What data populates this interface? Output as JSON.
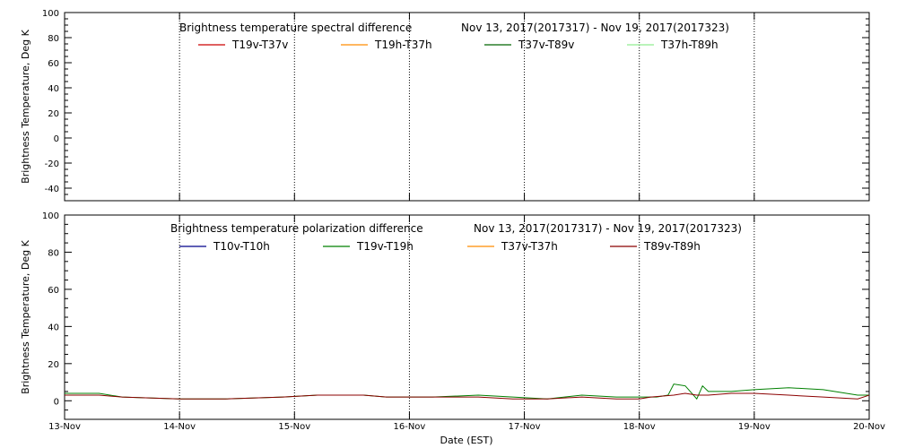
{
  "colors": {
    "background": "#ffffff",
    "axis": "#000000",
    "grid": "#000000"
  },
  "xaxis": {
    "label": "Date (EST)",
    "ticks": [
      "13-Nov",
      "14-Nov",
      "15-Nov",
      "16-Nov",
      "17-Nov",
      "18-Nov",
      "19-Nov",
      "20-Nov"
    ]
  },
  "chart_data": [
    {
      "type": "line",
      "title": "Brightness temperature spectral difference",
      "date_range": "Nov 13, 2017(2017317) - Nov 19, 2017(2017323)",
      "ylabel": "Brightness Temperature, Deg K",
      "ylim": [
        -50,
        100
      ],
      "yticks": [
        -40,
        -20,
        0,
        20,
        40,
        60,
        80,
        100
      ],
      "xlim": [
        "13-Nov",
        "20-Nov"
      ],
      "grid": "vertical dotted at day boundaries",
      "legend": "top",
      "series": [
        {
          "name": "T19v-T37v",
          "color": "#cc0000",
          "x": [],
          "values": []
        },
        {
          "name": "T19h-T37h",
          "color": "#ff8c00",
          "x": [],
          "values": []
        },
        {
          "name": "T37v-T89v",
          "color": "#006400",
          "x": [],
          "values": []
        },
        {
          "name": "T37h-T89h",
          "color": "#90ee90",
          "x": [],
          "values": []
        }
      ]
    },
    {
      "type": "line",
      "title": "Brightness temperature polarization difference",
      "date_range": "Nov 13, 2017(2017317) - Nov 19, 2017(2017323)",
      "ylabel": "Brightness Temperature, Deg K",
      "ylim": [
        -10,
        100
      ],
      "yticks": [
        0,
        20,
        40,
        60,
        80,
        100
      ],
      "xlim": [
        "13-Nov",
        "20-Nov"
      ],
      "grid": "vertical dotted at day boundaries",
      "legend": "top",
      "series": [
        {
          "name": "T10v-T10h",
          "color": "#00008b",
          "x": [],
          "values": []
        },
        {
          "name": "T19v-T19h",
          "color": "#008000",
          "x": [
            0,
            0.3,
            0.5,
            1.0,
            1.4,
            1.9,
            2.2,
            2.6,
            2.8,
            3.2,
            3.6,
            3.9,
            4.2,
            4.5,
            4.8,
            5.0,
            5.15,
            5.25,
            5.3,
            5.4,
            5.5,
            5.55,
            5.6,
            5.7,
            5.8,
            6.0,
            6.3,
            6.6,
            6.9,
            7.0
          ],
          "values": [
            4,
            4,
            2,
            1,
            1,
            2,
            3,
            3,
            2,
            2,
            3,
            2,
            1,
            3,
            2,
            2,
            2,
            3,
            9,
            8,
            1,
            8,
            5,
            5,
            5,
            6,
            7,
            6,
            3,
            3
          ]
        },
        {
          "name": "T37v-T37h",
          "color": "#ff8c00",
          "x": [],
          "values": []
        },
        {
          "name": "T89v-T89h",
          "color": "#8b0000",
          "x": [
            0,
            0.3,
            0.5,
            1.0,
            1.4,
            1.9,
            2.2,
            2.6,
            2.8,
            3.2,
            3.6,
            3.9,
            4.2,
            4.5,
            4.8,
            5.0,
            5.1,
            5.3,
            5.4,
            5.5,
            5.6,
            5.8,
            6.0,
            6.3,
            6.6,
            6.9,
            7.0
          ],
          "values": [
            3,
            3,
            2,
            1,
            1,
            2,
            3,
            3,
            2,
            2,
            2,
            1,
            1,
            2,
            1,
            1,
            2,
            3,
            4,
            3,
            3,
            4,
            4,
            3,
            2,
            1,
            3
          ]
        }
      ]
    }
  ]
}
